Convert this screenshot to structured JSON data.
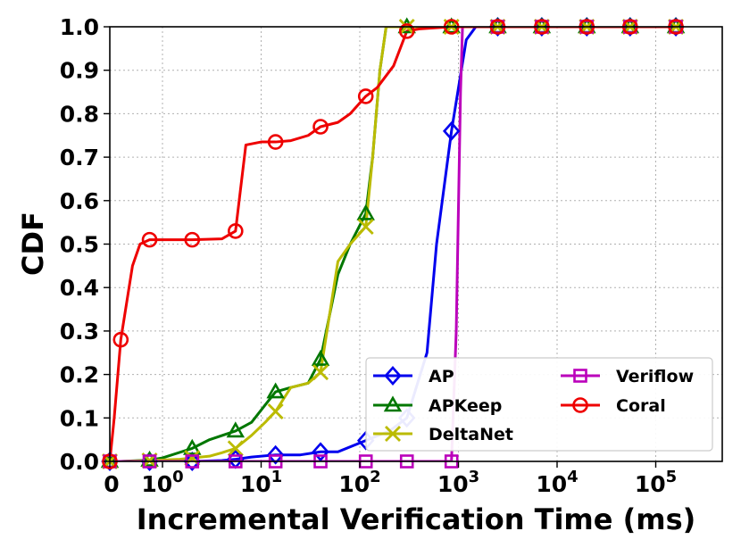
{
  "chart_data": {
    "type": "line",
    "xlabel": "Incremental Verification Time (ms)",
    "ylabel": "CDF",
    "x_scale": "symlog",
    "xlim": [
      0,
      200000
    ],
    "ylim": [
      0,
      1.0
    ],
    "x_ticks": [
      {
        "value": 0,
        "base": "0",
        "exp": ""
      },
      {
        "value": 1,
        "base": "10",
        "exp": "0"
      },
      {
        "value": 10,
        "base": "10",
        "exp": "1"
      },
      {
        "value": 100,
        "base": "10",
        "exp": "2"
      },
      {
        "value": 1000,
        "base": "10",
        "exp": "3"
      },
      {
        "value": 10000,
        "base": "10",
        "exp": "4"
      },
      {
        "value": 100000,
        "base": "10",
        "exp": "5"
      }
    ],
    "y_ticks": [
      "0.0",
      "0.1",
      "0.2",
      "0.3",
      "0.4",
      "0.5",
      "0.6",
      "0.7",
      "0.8",
      "0.9",
      "1.0"
    ],
    "grid": true,
    "legend_position": "bottom-right",
    "series": [
      {
        "name": "AP",
        "color": "#0000ee",
        "marker": "diamond",
        "points": [
          [
            0,
            0
          ],
          [
            0.1,
            0
          ],
          [
            0.5,
            0
          ],
          [
            2,
            0
          ],
          [
            4,
            0.002
          ],
          [
            5.5,
            0.005
          ],
          [
            8,
            0.01
          ],
          [
            14,
            0.015
          ],
          [
            25,
            0.015
          ],
          [
            40,
            0.022
          ],
          [
            60,
            0.022
          ],
          [
            115,
            0.048
          ],
          [
            200,
            0.07
          ],
          [
            300,
            0.1
          ],
          [
            480,
            0.25
          ],
          [
            600,
            0.5
          ],
          [
            850,
            0.76
          ],
          [
            1200,
            0.97
          ],
          [
            1500,
            1.0
          ],
          [
            2500,
            1.0
          ],
          [
            7000,
            1.0
          ],
          [
            20000,
            1.0
          ],
          [
            55000,
            1.0
          ],
          [
            160000,
            1.0
          ]
        ],
        "markers": [
          [
            0,
            0
          ],
          [
            0.5,
            0
          ],
          [
            2,
            0
          ],
          [
            5.5,
            0.005
          ],
          [
            14,
            0.015
          ],
          [
            40,
            0.022
          ],
          [
            115,
            0.048
          ],
          [
            300,
            0.1
          ],
          [
            850,
            0.76
          ],
          [
            2500,
            1.0
          ],
          [
            7000,
            1.0
          ],
          [
            20000,
            1.0
          ],
          [
            55000,
            1.0
          ],
          [
            160000,
            1.0
          ]
        ]
      },
      {
        "name": "APKeep",
        "color": "#007700",
        "marker": "triangle",
        "points": [
          [
            0,
            0
          ],
          [
            0.1,
            0
          ],
          [
            0.5,
            0.003
          ],
          [
            1,
            0.008
          ],
          [
            2,
            0.03
          ],
          [
            3,
            0.05
          ],
          [
            5.5,
            0.07
          ],
          [
            8,
            0.09
          ],
          [
            11,
            0.13
          ],
          [
            14,
            0.16
          ],
          [
            20,
            0.17
          ],
          [
            30,
            0.18
          ],
          [
            40,
            0.235
          ],
          [
            60,
            0.43
          ],
          [
            80,
            0.5
          ],
          [
            115,
            0.57
          ],
          [
            135,
            0.7
          ],
          [
            160,
            0.9
          ],
          [
            185,
            1.0
          ],
          [
            300,
            1.0
          ],
          [
            850,
            1.0
          ],
          [
            2500,
            1.0
          ],
          [
            7000,
            1.0
          ],
          [
            20000,
            1.0
          ],
          [
            55000,
            1.0
          ],
          [
            160000,
            1.0
          ]
        ],
        "markers": [
          [
            0,
            0
          ],
          [
            0.5,
            0.003
          ],
          [
            2,
            0.03
          ],
          [
            5.5,
            0.07
          ],
          [
            14,
            0.16
          ],
          [
            40,
            0.235
          ],
          [
            115,
            0.57
          ],
          [
            300,
            1.0
          ],
          [
            850,
            1.0
          ],
          [
            2500,
            1.0
          ],
          [
            7000,
            1.0
          ],
          [
            20000,
            1.0
          ],
          [
            55000,
            1.0
          ],
          [
            160000,
            1.0
          ]
        ]
      },
      {
        "name": "DeltaNet",
        "color": "#bbbb00",
        "marker": "x",
        "points": [
          [
            0,
            0
          ],
          [
            0.1,
            0
          ],
          [
            0.5,
            0.002
          ],
          [
            1.5,
            0.005
          ],
          [
            2,
            0.008
          ],
          [
            3,
            0.012
          ],
          [
            4,
            0.02
          ],
          [
            5.5,
            0.03
          ],
          [
            8,
            0.06
          ],
          [
            11,
            0.09
          ],
          [
            14,
            0.115
          ],
          [
            20,
            0.17
          ],
          [
            30,
            0.18
          ],
          [
            40,
            0.205
          ],
          [
            60,
            0.46
          ],
          [
            80,
            0.5
          ],
          [
            115,
            0.54
          ],
          [
            135,
            0.7
          ],
          [
            160,
            0.9
          ],
          [
            185,
            1.0
          ],
          [
            300,
            1.0
          ],
          [
            850,
            1.0
          ],
          [
            2500,
            1.0
          ],
          [
            7000,
            1.0
          ],
          [
            20000,
            1.0
          ],
          [
            55000,
            1.0
          ],
          [
            160000,
            1.0
          ]
        ],
        "markers": [
          [
            0,
            0
          ],
          [
            0.5,
            0.002
          ],
          [
            2,
            0.008
          ],
          [
            5.5,
            0.03
          ],
          [
            14,
            0.115
          ],
          [
            40,
            0.205
          ],
          [
            115,
            0.54
          ],
          [
            300,
            1.0
          ],
          [
            850,
            1.0
          ],
          [
            2500,
            1.0
          ],
          [
            7000,
            1.0
          ],
          [
            20000,
            1.0
          ],
          [
            55000,
            1.0
          ],
          [
            160000,
            1.0
          ]
        ]
      },
      {
        "name": "Veriflow",
        "color": "#bb00bb",
        "marker": "square",
        "points": [
          [
            0,
            0
          ],
          [
            0.1,
            0
          ],
          [
            0.5,
            0
          ],
          [
            2,
            0
          ],
          [
            5.5,
            0
          ],
          [
            14,
            0
          ],
          [
            40,
            0
          ],
          [
            115,
            0
          ],
          [
            300,
            0
          ],
          [
            850,
            0
          ],
          [
            950,
            0.3
          ],
          [
            1050,
            0.85
          ],
          [
            1100,
            1.0
          ],
          [
            2500,
            1.0
          ],
          [
            7000,
            1.0
          ],
          [
            20000,
            1.0
          ],
          [
            55000,
            1.0
          ],
          [
            160000,
            1.0
          ]
        ],
        "markers": [
          [
            0,
            0
          ],
          [
            0.5,
            0
          ],
          [
            2,
            0
          ],
          [
            5.5,
            0
          ],
          [
            14,
            0
          ],
          [
            40,
            0
          ],
          [
            115,
            0
          ],
          [
            300,
            0
          ],
          [
            850,
            0
          ],
          [
            2500,
            1.0
          ],
          [
            7000,
            1.0
          ],
          [
            20000,
            1.0
          ],
          [
            55000,
            1.0
          ],
          [
            160000,
            1.0
          ]
        ]
      },
      {
        "name": "Coral",
        "color": "#ee0000",
        "marker": "circle",
        "points": [
          [
            0,
            0
          ],
          [
            0.04,
            0.1
          ],
          [
            0.1,
            0.28
          ],
          [
            0.2,
            0.45
          ],
          [
            0.3,
            0.5
          ],
          [
            0.5,
            0.51
          ],
          [
            1,
            0.51
          ],
          [
            2,
            0.51
          ],
          [
            4,
            0.512
          ],
          [
            5.5,
            0.53
          ],
          [
            7,
            0.728
          ],
          [
            10,
            0.735
          ],
          [
            14,
            0.735
          ],
          [
            20,
            0.738
          ],
          [
            30,
            0.75
          ],
          [
            40,
            0.77
          ],
          [
            60,
            0.78
          ],
          [
            80,
            0.8
          ],
          [
            115,
            0.84
          ],
          [
            150,
            0.86
          ],
          [
            220,
            0.91
          ],
          [
            300,
            0.99
          ],
          [
            400,
            0.995
          ],
          [
            850,
            1.0
          ],
          [
            2500,
            1.0
          ],
          [
            7000,
            1.0
          ],
          [
            20000,
            1.0
          ],
          [
            55000,
            1.0
          ],
          [
            160000,
            1.0
          ]
        ],
        "markers": [
          [
            0,
            0
          ],
          [
            0.1,
            0.28
          ],
          [
            0.5,
            0.51
          ],
          [
            2,
            0.51
          ],
          [
            5.5,
            0.53
          ],
          [
            14,
            0.735
          ],
          [
            40,
            0.77
          ],
          [
            115,
            0.84
          ],
          [
            300,
            0.99
          ],
          [
            850,
            1.0
          ],
          [
            2500,
            1.0
          ],
          [
            7000,
            1.0
          ],
          [
            20000,
            1.0
          ],
          [
            55000,
            1.0
          ],
          [
            160000,
            1.0
          ]
        ]
      }
    ]
  }
}
